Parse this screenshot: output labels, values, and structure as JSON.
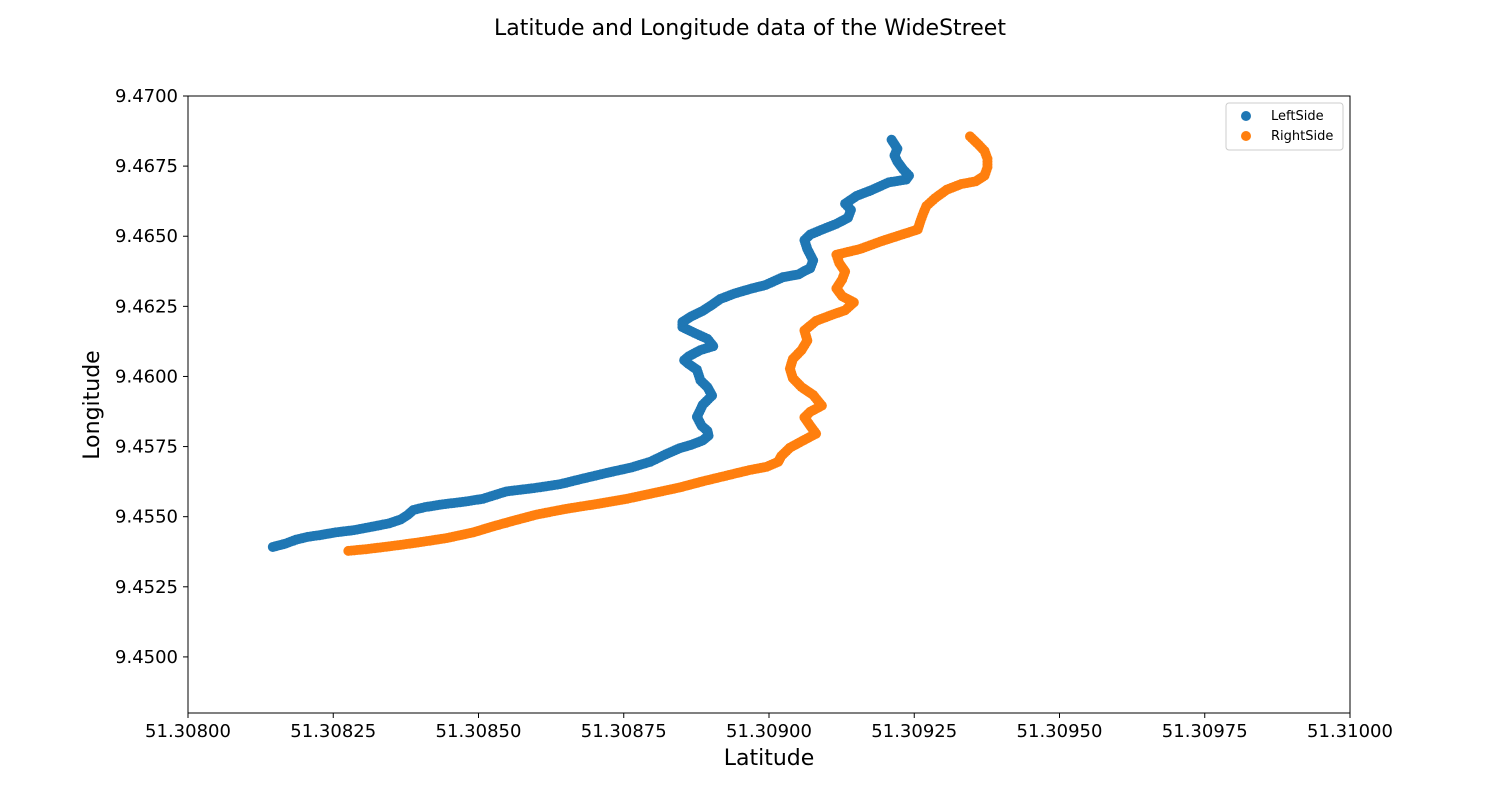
{
  "chart_data": {
    "type": "scatter",
    "title": "Latitude and Longitude data of the WideStreet",
    "xlabel": "Latitude",
    "ylabel": "Longitude",
    "xlim": [
      51.308,
      51.31
    ],
    "ylim": [
      9.448,
      9.47
    ],
    "xticks": [
      "51.30800",
      "51.30825",
      "51.30850",
      "51.30875",
      "51.30900",
      "51.30925",
      "51.30950",
      "51.30975",
      "51.31000"
    ],
    "yticks": [
      "9.4500",
      "9.4525",
      "9.4550",
      "9.4575",
      "9.4600",
      "9.4625",
      "9.4650",
      "9.4675",
      "9.4700"
    ],
    "grid": false,
    "legend_position": "top-right",
    "series": [
      {
        "name": "LeftSide",
        "color": "#1f77b4",
        "x": [
          51.308146,
          51.308168,
          51.308186,
          51.308206,
          51.308226,
          51.308254,
          51.308286,
          51.308316,
          51.308346,
          51.308366,
          51.308378,
          51.308388,
          51.308408,
          51.308438,
          51.308478,
          51.308508,
          51.308548,
          51.308596,
          51.308641,
          51.308676,
          51.308721,
          51.308764,
          51.308796,
          51.308822,
          51.308846,
          51.308866,
          51.308886,
          51.308896,
          51.308894,
          51.308884,
          51.308876,
          51.308886,
          51.308902,
          51.308894,
          51.308882,
          51.308876,
          51.308862,
          51.308854,
          51.308862,
          51.308882,
          51.308904,
          51.308894,
          51.308871,
          51.308851,
          51.308851,
          51.308866,
          51.308886,
          51.308901,
          51.308916,
          51.308941,
          51.308971,
          51.308994,
          51.309024,
          51.309051,
          51.309061,
          51.309071,
          51.309076,
          51.309066,
          51.309061,
          51.309071,
          51.309094,
          51.309116,
          51.309136,
          51.309141,
          51.309131,
          51.309151,
          51.309176,
          51.309206,
          51.309236,
          51.309241,
          51.309231,
          51.309221,
          51.309216,
          51.309221,
          51.309211
        ],
        "y": [
          9.45392,
          9.45404,
          9.45418,
          9.45428,
          9.45434,
          9.45444,
          9.45452,
          9.45464,
          9.45476,
          9.4549,
          9.45506,
          9.45524,
          9.45534,
          9.45544,
          9.45554,
          9.45564,
          9.4559,
          9.45602,
          9.45616,
          9.45634,
          9.45656,
          9.45676,
          9.45696,
          9.45722,
          9.45744,
          9.45756,
          9.45772,
          9.45789,
          9.45806,
          9.45824,
          9.45856,
          9.45899,
          9.45932,
          9.45962,
          9.45986,
          9.46024,
          9.46044,
          9.46058,
          9.46072,
          9.46094,
          9.46108,
          9.46134,
          9.46156,
          9.46176,
          9.46194,
          9.46214,
          9.46234,
          9.46254,
          9.46276,
          9.46296,
          9.46314,
          9.46326,
          9.46354,
          9.46364,
          9.46376,
          9.46386,
          9.46414,
          9.46454,
          9.46486,
          9.46506,
          9.46526,
          9.46544,
          9.46566,
          9.46594,
          9.46616,
          9.46644,
          9.46664,
          9.46692,
          9.46702,
          9.46716,
          9.46738,
          9.46766,
          9.46788,
          9.46812,
          9.46844
        ]
      },
      {
        "name": "RightSide",
        "color": "#ff7f0e",
        "x": [
          51.308276,
          51.308306,
          51.308346,
          51.308396,
          51.308446,
          51.308491,
          51.308526,
          51.308561,
          51.308601,
          51.308651,
          51.308706,
          51.308756,
          51.308801,
          51.308846,
          51.308886,
          51.308926,
          51.308966,
          51.308996,
          51.309016,
          51.309021,
          51.309036,
          51.309061,
          51.309081,
          51.309071,
          51.309061,
          51.309071,
          51.309091,
          51.309076,
          51.309056,
          51.309041,
          51.309036,
          51.309041,
          51.309056,
          51.309066,
          51.309061,
          51.309081,
          51.309106,
          51.309131,
          51.309146,
          51.309126,
          51.309116,
          51.309126,
          51.309131,
          51.309121,
          51.309116,
          51.309156,
          51.309196,
          51.309226,
          51.309256,
          51.309261,
          51.309266,
          51.309271,
          51.309286,
          51.309306,
          51.309331,
          51.309356,
          51.309371,
          51.309376,
          51.309376,
          51.309371,
          51.309361,
          51.309346
        ],
        "y": [
          9.45378,
          9.45384,
          9.45394,
          9.45408,
          9.45424,
          9.45444,
          9.45466,
          9.45486,
          9.45508,
          9.45528,
          9.45546,
          9.45564,
          9.45584,
          9.45604,
          9.45626,
          9.45646,
          9.45666,
          9.45678,
          9.45696,
          9.45716,
          9.45746,
          9.45774,
          9.45796,
          9.45824,
          9.45854,
          9.45874,
          9.45896,
          9.45934,
          9.45962,
          9.45994,
          9.46028,
          9.46062,
          9.46094,
          9.46128,
          9.46164,
          9.46198,
          9.46218,
          9.46236,
          9.46264,
          9.46286,
          9.46314,
          9.46346,
          9.46374,
          9.46404,
          9.46434,
          9.46454,
          9.46484,
          9.46504,
          9.46524,
          9.46556,
          9.46584,
          9.46608,
          9.46636,
          9.46666,
          9.46686,
          9.46696,
          9.46716,
          9.46746,
          9.46776,
          9.46804,
          9.46826,
          9.46856
        ]
      }
    ]
  }
}
